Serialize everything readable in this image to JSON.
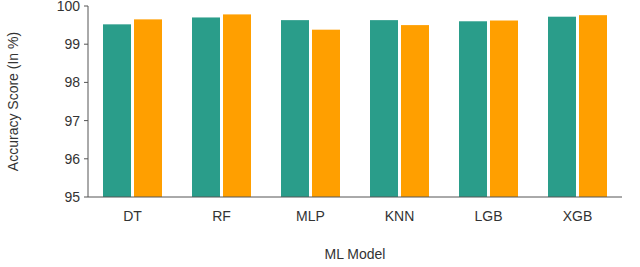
{
  "chart_data": {
    "type": "bar",
    "x_label": "ML Model",
    "y_label": "Accuracy Score (In %)",
    "categories": [
      "DT",
      "RF",
      "MLP",
      "KNN",
      "LGB",
      "XGB"
    ],
    "series": [
      {
        "color": "#2a9d8a",
        "values": [
          99.52,
          99.7,
          99.63,
          99.63,
          99.6,
          99.72
        ]
      },
      {
        "color": "#ff9f00",
        "values": [
          99.65,
          99.78,
          99.38,
          99.5,
          99.62,
          99.76
        ]
      }
    ],
    "ylim": [
      95,
      100
    ],
    "yticks": [
      95,
      96,
      97,
      98,
      99,
      100
    ],
    "grid": false
  }
}
